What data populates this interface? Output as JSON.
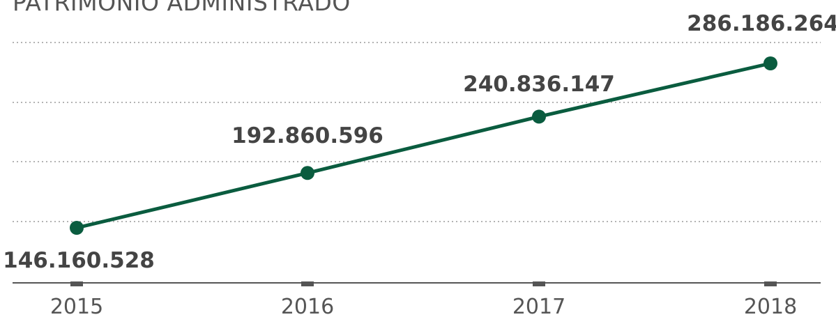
{
  "chart_data": {
    "type": "line",
    "title": "PATRIMÔNIO ADMINISTRADO",
    "xlabel": "",
    "ylabel": "",
    "categories": [
      "2015",
      "2016",
      "2017",
      "2018"
    ],
    "series": [
      {
        "values": [
          146160528,
          192860596,
          240836147,
          286186264
        ],
        "labels": [
          "146.160.528",
          "192.860.596",
          "240.836.147",
          "286.186.264"
        ]
      }
    ],
    "ylim": [
      100000000,
      310000000
    ],
    "grid": true,
    "grid_style": "dotted",
    "legend": "none",
    "colors": {
      "line": "#0a5c3f",
      "text": "#444444",
      "axis": "#555555",
      "grid": "#9a9a9a"
    }
  }
}
